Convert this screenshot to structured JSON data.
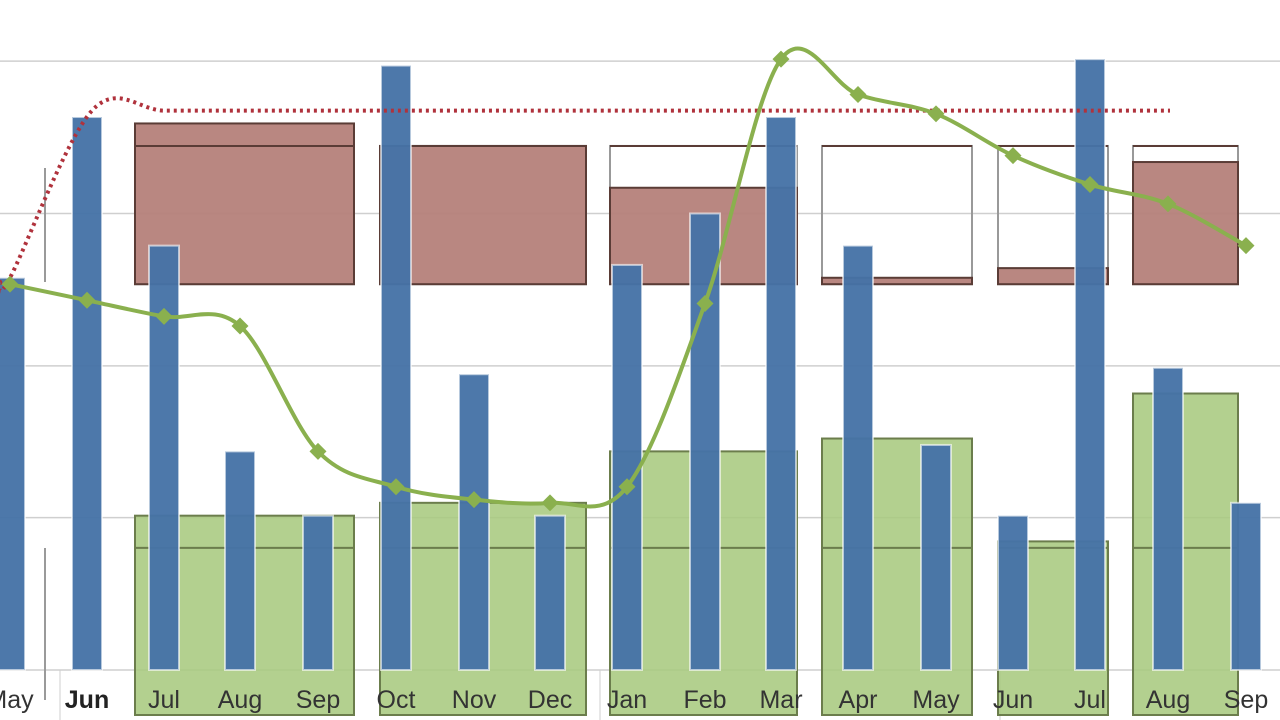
{
  "chart_data": {
    "type": "bar",
    "title": "",
    "xlabel": "",
    "ylabel": "",
    "grid": true,
    "ylim": [
      0,
      100
    ],
    "categories": [
      "May",
      "Jun",
      "Jul",
      "Aug",
      "Sep",
      "Oct",
      "Nov",
      "Dec",
      "Jan",
      "Feb",
      "Mar",
      "Apr",
      "May",
      "Jun",
      "Jul",
      "Aug",
      "Sep"
    ],
    "highlighted_category": "Jun",
    "colors": {
      "bar": "#4673a7",
      "line": "#8ab04e",
      "target": "#b0323c",
      "upper_box": "#b5817a",
      "lower_box": "#a9c97f",
      "grid": "#cfcfcf"
    },
    "series": [
      {
        "kind": "bar",
        "values": [
          61,
          86,
          66,
          34,
          24,
          94,
          46,
          24,
          63,
          71,
          86,
          66,
          35,
          24,
          95,
          47,
          26
        ]
      },
      {
        "kind": "line",
        "values": [
          60,
          57.5,
          55,
          53.5,
          34,
          28.5,
          26.5,
          26,
          28.5,
          57,
          95,
          89.5,
          86.5,
          80,
          75.5,
          72.5,
          66
        ]
      },
      {
        "kind": "target",
        "values": [
          61,
          87,
          87,
          87,
          87,
          87,
          87,
          87,
          87,
          87,
          87,
          87,
          87,
          87,
          87,
          87,
          87
        ]
      }
    ],
    "quarter_boxes": [
      {
        "period": "Q-Jul-Sep",
        "upper": [
          60,
          85
        ],
        "lower": [
          0,
          24
        ],
        "ref_upper": 81.5,
        "ref_lower": 19
      },
      {
        "period": "Q-Oct-Dec",
        "upper": [
          60,
          81.5
        ],
        "lower": [
          0,
          26
        ],
        "ref_upper": 81.5,
        "ref_lower": 19
      },
      {
        "period": "Q-Jan-Mar",
        "upper": [
          60,
          75
        ],
        "lower": [
          0,
          34
        ],
        "ref_upper": 81.5,
        "ref_lower": 19
      },
      {
        "period": "Q-Apr-May",
        "upper": [
          60,
          61
        ],
        "lower": [
          0,
          36
        ],
        "ref_upper": 81.5,
        "ref_lower": 19
      },
      {
        "period": "Q-Jun-Jul",
        "upper": [
          60,
          62.5
        ],
        "lower": [
          0,
          20
        ],
        "ref_upper": 81.5,
        "ref_lower": 19
      },
      {
        "period": "Q-Aug-Sep",
        "upper": [
          60,
          79
        ],
        "lower": [
          0,
          43
        ],
        "ref_upper": 81.5,
        "ref_lower": 19
      }
    ]
  }
}
